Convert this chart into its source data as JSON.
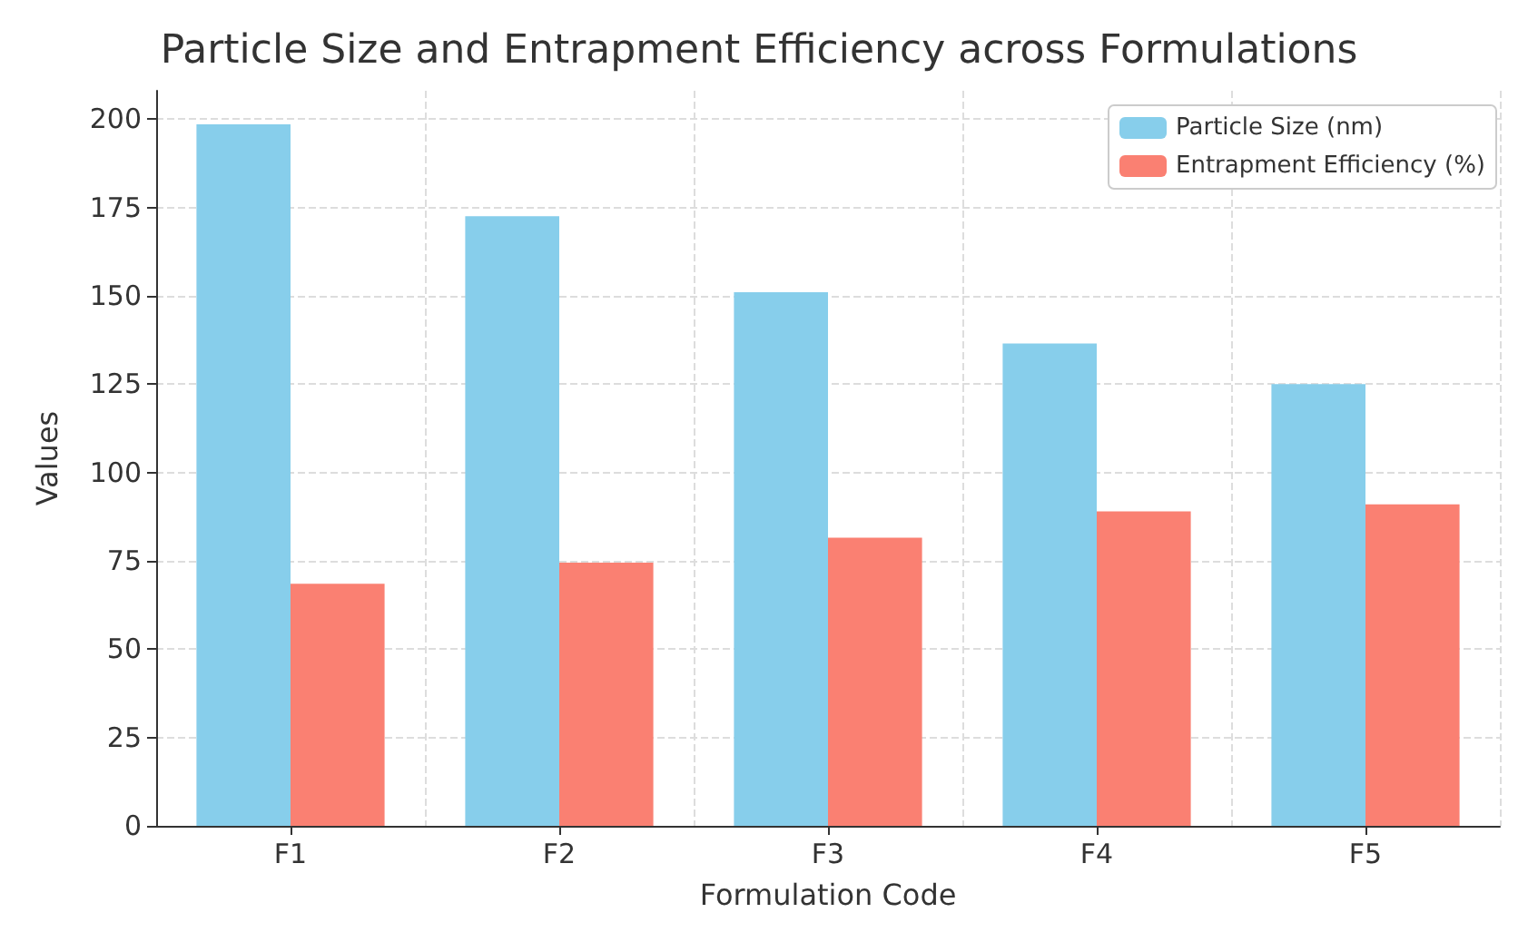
{
  "chart_data": {
    "type": "bar",
    "title": "Particle Size and Entrapment Efficiency across Formulations",
    "xlabel": "Formulation Code",
    "ylabel": "Values",
    "categories": [
      "F1",
      "F2",
      "F3",
      "F4",
      "F5"
    ],
    "series": [
      {
        "name": "Particle Size (nm)",
        "color": "#87ceeb",
        "values": [
          198.5,
          172.5,
          151,
          136.5,
          125
        ]
      },
      {
        "name": "Entrapment Efficiency (%)",
        "color": "#fa8072",
        "values": [
          68.5,
          74.5,
          81.5,
          89,
          91
        ]
      }
    ],
    "ylim": [
      0,
      208
    ],
    "yticks": [
      0,
      25,
      50,
      75,
      100,
      125,
      150,
      175,
      200
    ],
    "grid": true,
    "legend": "top right"
  }
}
